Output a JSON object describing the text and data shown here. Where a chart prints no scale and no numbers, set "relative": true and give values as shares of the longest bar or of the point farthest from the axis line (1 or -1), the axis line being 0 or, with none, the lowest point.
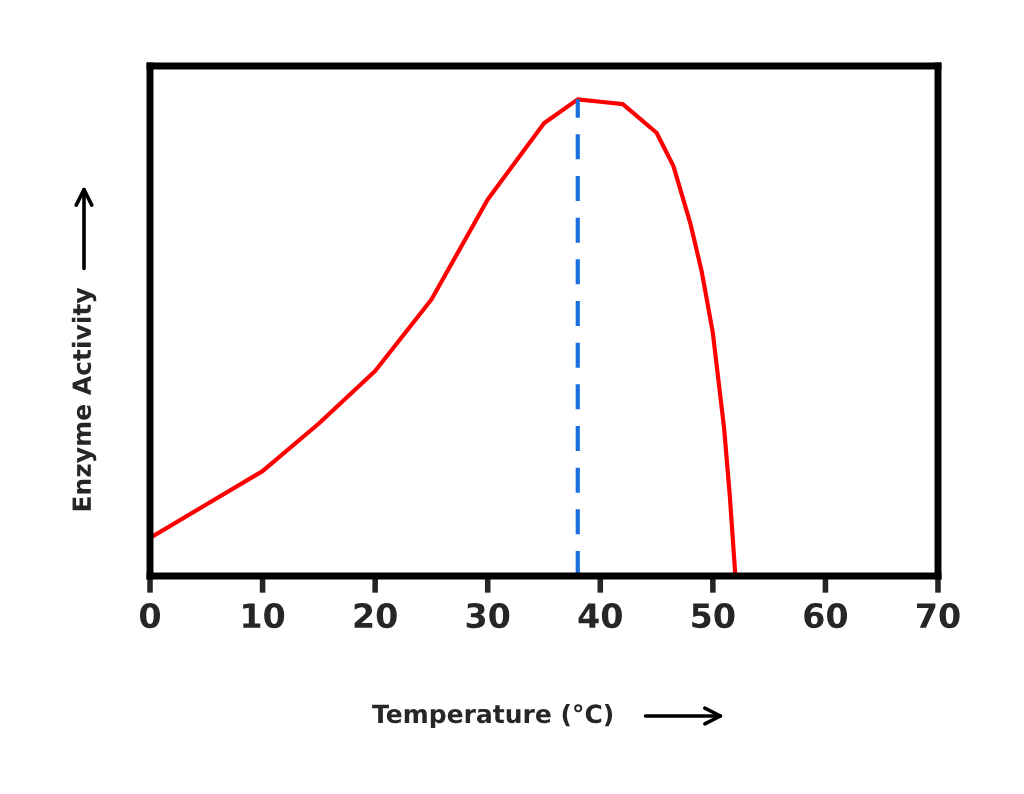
{
  "chart_data": {
    "type": "line",
    "xlabel": "Temperature (°C)",
    "ylabel": "Enzyme Activity",
    "relative": true,
    "xlim": [
      0,
      70
    ],
    "xticks": [
      0,
      10,
      20,
      30,
      40,
      50,
      60,
      70
    ],
    "grid": false,
    "legend": false,
    "marker": "none",
    "line_style": "solid",
    "series": [
      {
        "color": "#ff0000",
        "x": [
          0,
          5,
          10,
          15,
          20,
          25,
          30,
          35,
          38,
          40,
          42,
          45,
          46.5,
          48,
          49,
          50,
          51,
          51.5,
          52
        ],
        "values": [
          0.08,
          0.15,
          0.22,
          0.32,
          0.43,
          0.58,
          0.79,
          0.95,
          1,
          0.995,
          0.99,
          0.93,
          0.86,
          0.74,
          0.64,
          0.51,
          0.31,
          0.17,
          0
        ]
      }
    ],
    "ref_lines": [
      {
        "axis": "x",
        "value": 38,
        "color": "#1a6fe0",
        "line_style": "dashed"
      }
    ]
  }
}
